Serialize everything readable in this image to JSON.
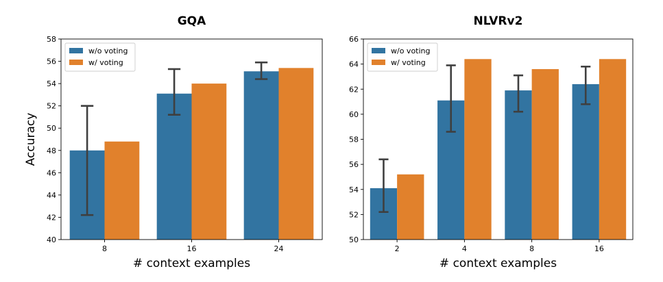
{
  "colors": {
    "without_voting": "#3274a1",
    "with_voting": "#e1812c",
    "error_bar": "#3f3f3f",
    "frame": "#000000"
  },
  "chart_data": [
    {
      "type": "bar",
      "title": "GQA",
      "xlabel": "# context examples",
      "ylabel": "Accuracy",
      "categories": [
        "8",
        "16",
        "24"
      ],
      "ylim": [
        40,
        58
      ],
      "yticks": [
        40,
        42,
        44,
        46,
        48,
        50,
        52,
        54,
        56,
        58
      ],
      "legend_position": "upper-left",
      "grid": false,
      "series": [
        {
          "name": "w/o voting",
          "color_key": "without_voting",
          "values": [
            48.0,
            53.1,
            55.1
          ],
          "error_low": [
            42.2,
            51.2,
            54.4
          ],
          "error_high": [
            52.0,
            55.3,
            55.9
          ]
        },
        {
          "name": "w/ voting",
          "color_key": "with_voting",
          "values": [
            48.8,
            54.0,
            55.4
          ]
        }
      ]
    },
    {
      "type": "bar",
      "title": "NLVRv2",
      "xlabel": "# context examples",
      "ylabel": "",
      "categories": [
        "2",
        "4",
        "8",
        "16"
      ],
      "ylim": [
        50,
        66
      ],
      "yticks": [
        50,
        52,
        54,
        56,
        58,
        60,
        62,
        64,
        66
      ],
      "legend_position": "upper-left",
      "grid": false,
      "series": [
        {
          "name": "w/o voting",
          "color_key": "without_voting",
          "values": [
            54.1,
            61.1,
            61.9,
            62.4
          ],
          "error_low": [
            52.2,
            58.6,
            60.2,
            60.8
          ],
          "error_high": [
            56.4,
            63.9,
            63.1,
            63.8
          ]
        },
        {
          "name": "w/ voting",
          "color_key": "with_voting",
          "values": [
            55.2,
            64.4,
            63.6,
            64.4
          ]
        }
      ]
    }
  ]
}
